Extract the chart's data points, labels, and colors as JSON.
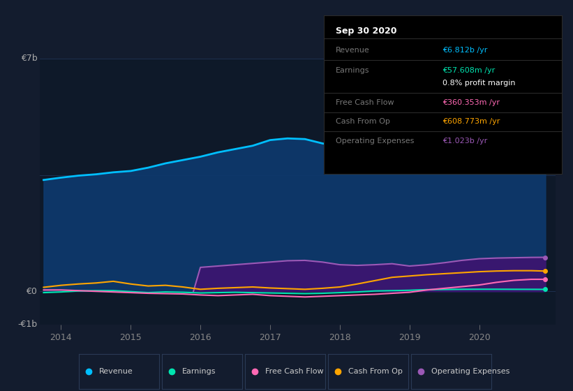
{
  "bg_color": "#131c2e",
  "plot_bg_color": "#0e1929",
  "grid_color": "#1e3050",
  "title_box": {
    "title": "Sep 30 2020",
    "rows": [
      {
        "label": "Revenue",
        "value": "€6.812b /yr",
        "value_color": "#00bfff"
      },
      {
        "label": "Earnings",
        "value": "€57.608m /yr",
        "value_color": "#00e5b0"
      },
      {
        "label": "",
        "value": "0.8% profit margin",
        "value_color": "#ffffff"
      },
      {
        "label": "Free Cash Flow",
        "value": "€360.353m /yr",
        "value_color": "#ff69b4"
      },
      {
        "label": "Cash From Op",
        "value": "€608.773m /yr",
        "value_color": "#ffa500"
      },
      {
        "label": "Operating Expenses",
        "value": "€1.023b /yr",
        "value_color": "#9b59b6"
      }
    ]
  },
  "ylim": [
    -1000000000.0,
    7000000000.0
  ],
  "xlim": [
    2013.7,
    2021.1
  ],
  "xticks": [
    2014,
    2015,
    2016,
    2017,
    2018,
    2019,
    2020
  ],
  "ytick_labels": [
    [
      "€7b",
      7000000000.0
    ],
    [
      "€0",
      0.0
    ],
    [
      "-€1b",
      -1000000000.0
    ]
  ],
  "grid_lines": [
    7000000000.0,
    3500000000.0,
    0.0,
    -1000000000.0
  ],
  "series": {
    "revenue": {
      "x": [
        2013.75,
        2014.0,
        2014.25,
        2014.5,
        2014.75,
        2015.0,
        2015.25,
        2015.5,
        2015.75,
        2016.0,
        2016.25,
        2016.5,
        2016.75,
        2017.0,
        2017.25,
        2017.5,
        2017.75,
        2018.0,
        2018.25,
        2018.5,
        2018.75,
        2019.0,
        2019.25,
        2019.5,
        2019.75,
        2020.0,
        2020.25,
        2020.5,
        2020.75,
        2020.95
      ],
      "y": [
        3350000000.0,
        3420000000.0,
        3480000000.0,
        3520000000.0,
        3580000000.0,
        3620000000.0,
        3720000000.0,
        3850000000.0,
        3950000000.0,
        4050000000.0,
        4180000000.0,
        4280000000.0,
        4380000000.0,
        4550000000.0,
        4600000000.0,
        4580000000.0,
        4450000000.0,
        4350000000.0,
        4300000000.0,
        4280000000.0,
        4380000000.0,
        4520000000.0,
        4780000000.0,
        5050000000.0,
        5450000000.0,
        5880000000.0,
        6180000000.0,
        6480000000.0,
        6720000000.0,
        6812000000.0
      ],
      "color": "#00bfff",
      "fill_color": "#0d3a6e",
      "lw": 2.0
    },
    "operating_expenses": {
      "x": [
        2015.9,
        2016.0,
        2016.25,
        2016.5,
        2016.75,
        2017.0,
        2017.25,
        2017.5,
        2017.75,
        2018.0,
        2018.25,
        2018.5,
        2018.75,
        2019.0,
        2019.25,
        2019.5,
        2019.75,
        2020.0,
        2020.25,
        2020.5,
        2020.75,
        2020.95
      ],
      "y": [
        0,
        720000000.0,
        760000000.0,
        800000000.0,
        840000000.0,
        880000000.0,
        920000000.0,
        930000000.0,
        880000000.0,
        800000000.0,
        780000000.0,
        800000000.0,
        830000000.0,
        760000000.0,
        800000000.0,
        860000000.0,
        930000000.0,
        980000000.0,
        1000000000.0,
        1010000000.0,
        1020000000.0,
        1023000000.0
      ],
      "color": "#9b59b6",
      "fill_color": "#3d1470",
      "lw": 1.5
    },
    "cash_from_op": {
      "x": [
        2013.75,
        2014.0,
        2014.25,
        2014.5,
        2014.75,
        2015.0,
        2015.25,
        2015.5,
        2015.75,
        2016.0,
        2016.25,
        2016.5,
        2016.75,
        2017.0,
        2017.25,
        2017.5,
        2017.75,
        2018.0,
        2018.25,
        2018.5,
        2018.75,
        2019.0,
        2019.25,
        2019.5,
        2019.75,
        2020.0,
        2020.25,
        2020.5,
        2020.75,
        2020.95
      ],
      "y": [
        120000000.0,
        180000000.0,
        220000000.0,
        250000000.0,
        300000000.0,
        220000000.0,
        160000000.0,
        180000000.0,
        130000000.0,
        60000000.0,
        90000000.0,
        110000000.0,
        130000000.0,
        100000000.0,
        80000000.0,
        60000000.0,
        90000000.0,
        130000000.0,
        220000000.0,
        320000000.0,
        420000000.0,
        460000000.0,
        500000000.0,
        530000000.0,
        560000000.0,
        590000000.0,
        610000000.0,
        620000000.0,
        620000000.0,
        608800000.0
      ],
      "color": "#ffa500",
      "lw": 1.5
    },
    "earnings": {
      "x": [
        2013.75,
        2014.0,
        2014.25,
        2014.5,
        2014.75,
        2015.0,
        2015.25,
        2015.5,
        2015.75,
        2016.0,
        2016.25,
        2016.5,
        2016.75,
        2017.0,
        2017.25,
        2017.5,
        2017.75,
        2018.0,
        2018.25,
        2018.5,
        2018.75,
        2019.0,
        2019.25,
        2019.5,
        2019.75,
        2020.0,
        2020.25,
        2020.5,
        2020.75,
        2020.95
      ],
      "y": [
        -40000000.0,
        -20000000.0,
        10000000.0,
        20000000.0,
        20000000.0,
        -10000000.0,
        -40000000.0,
        -20000000.0,
        -30000000.0,
        -50000000.0,
        -40000000.0,
        -30000000.0,
        -40000000.0,
        -50000000.0,
        -60000000.0,
        -70000000.0,
        -60000000.0,
        -40000000.0,
        -20000000.0,
        10000000.0,
        20000000.0,
        30000000.0,
        50000000.0,
        55000000.0,
        60000000.0,
        62000000.0,
        62000000.0,
        60000000.0,
        59000000.0,
        57610000.0
      ],
      "color": "#00e5b0",
      "lw": 1.5
    },
    "free_cash_flow": {
      "x": [
        2013.75,
        2014.0,
        2014.25,
        2014.5,
        2014.75,
        2015.0,
        2015.25,
        2015.5,
        2015.75,
        2016.0,
        2016.25,
        2016.5,
        2016.75,
        2017.0,
        2017.25,
        2017.5,
        2017.75,
        2018.0,
        2018.25,
        2018.5,
        2018.75,
        2019.0,
        2019.25,
        2019.5,
        2019.75,
        2020.0,
        2020.25,
        2020.5,
        2020.75,
        2020.95
      ],
      "y": [
        40000000.0,
        40000000.0,
        20000000.0,
        0.0,
        -20000000.0,
        -40000000.0,
        -60000000.0,
        -70000000.0,
        -80000000.0,
        -110000000.0,
        -130000000.0,
        -110000000.0,
        -90000000.0,
        -130000000.0,
        -150000000.0,
        -170000000.0,
        -150000000.0,
        -130000000.0,
        -110000000.0,
        -90000000.0,
        -60000000.0,
        -30000000.0,
        40000000.0,
        90000000.0,
        140000000.0,
        190000000.0,
        270000000.0,
        330000000.0,
        360000000.0,
        360350000.0
      ],
      "color": "#ff69b4",
      "lw": 1.5
    }
  },
  "legend": [
    {
      "label": "Revenue",
      "color": "#00bfff"
    },
    {
      "label": "Earnings",
      "color": "#00e5b0"
    },
    {
      "label": "Free Cash Flow",
      "color": "#ff69b4"
    },
    {
      "label": "Cash From Op",
      "color": "#ffa500"
    },
    {
      "label": "Operating Expenses",
      "color": "#9b59b6"
    }
  ]
}
